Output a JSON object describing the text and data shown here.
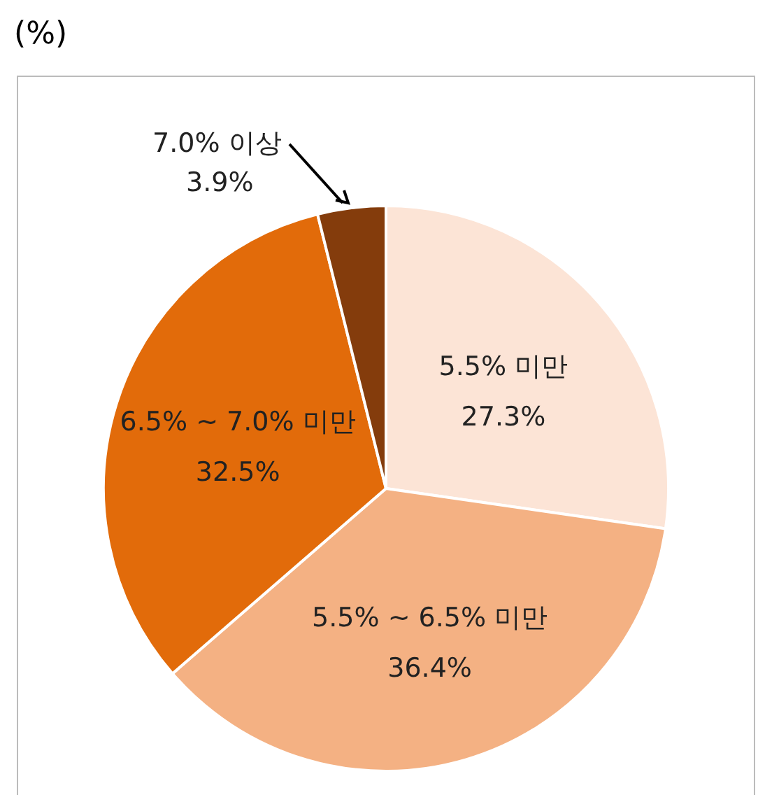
{
  "chart_data": {
    "type": "pie",
    "annotations": [
      "(%)"
    ],
    "categories": [
      "5.5% 미만",
      "5.5% ~ 6.5% 미만",
      "6.5% ~ 7.0% 미만",
      "7.0% 이상"
    ],
    "values": [
      27.3,
      36.4,
      32.5,
      3.9
    ],
    "colors": [
      "#fce4d6",
      "#f4b183",
      "#e26b0a",
      "#843c0c"
    ],
    "value_labels": [
      "27.3%",
      "36.4%",
      "32.5%",
      "3.9%"
    ],
    "legend": false
  }
}
